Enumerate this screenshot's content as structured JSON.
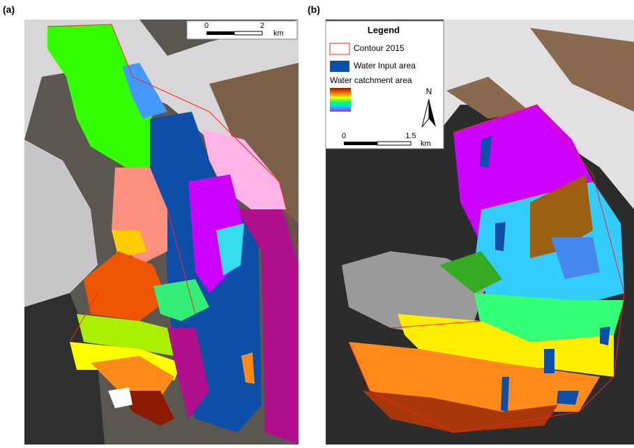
{
  "panels": [
    {
      "label": "(a)",
      "scale_bar": {
        "ticks": [
          0,
          2
        ],
        "unit": "km"
      }
    },
    {
      "label": "(b)",
      "legend": {
        "title": "Legend",
        "items": [
          "Contour 2015",
          "Water Input area",
          "Water catchment area"
        ],
        "north": "N"
      },
      "scale_bar": {
        "ticks": [
          0,
          1.5
        ],
        "unit": "km"
      }
    }
  ]
}
